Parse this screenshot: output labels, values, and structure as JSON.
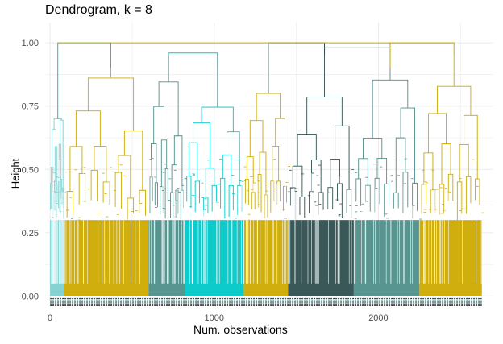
{
  "chart_data": {
    "type": "dendrogram",
    "title": "Dendrogram, k = 8",
    "xlabel": "Num. observations",
    "ylabel": "Height",
    "x_ticks": [
      0,
      1000,
      2000
    ],
    "y_ticks": [
      "0.00",
      "0.25",
      "0.50",
      "0.75",
      "1.00"
    ],
    "xlim": [
      -30,
      2700
    ],
    "ylim": [
      -0.04,
      1.08
    ],
    "grid": true,
    "n_observations": 2630,
    "k": 8,
    "clusters": [
      {
        "start": 0,
        "end": 85,
        "color": "#7fd0d0",
        "height": 0.7
      },
      {
        "start": 85,
        "end": 600,
        "color": "#ccaa00",
        "height": 0.9
      },
      {
        "start": 600,
        "end": 820,
        "color": "#4f8f8a",
        "height": 0.95
      },
      {
        "start": 820,
        "end": 1180,
        "color": "#00c8c8",
        "height": 0.9
      },
      {
        "start": 1180,
        "end": 1450,
        "color": "#ccaa00",
        "height": 0.8
      },
      {
        "start": 1450,
        "end": 1850,
        "color": "#2f4f4f",
        "height": 0.95
      },
      {
        "start": 1850,
        "end": 2250,
        "color": "#4f8f8a",
        "height": 0.9
      },
      {
        "start": 2250,
        "end": 2630,
        "color": "#ccaa00",
        "height": 0.95
      }
    ],
    "top_merges": [
      {
        "left": 0,
        "right": 1,
        "height": 1.0,
        "color": "#00c8c8"
      },
      {
        "left": 2,
        "right": 3,
        "height": 0.96,
        "color": "#00c8c8"
      },
      {
        "left": 5,
        "right": 6,
        "height": 0.98,
        "color": "#2f4f4f"
      },
      {
        "left": 4,
        "right": 5,
        "height": 1.0,
        "color": "#2f4f4f"
      },
      {
        "left": 6,
        "right": 7,
        "height": 1.0,
        "color": "#ccaa00"
      }
    ]
  }
}
